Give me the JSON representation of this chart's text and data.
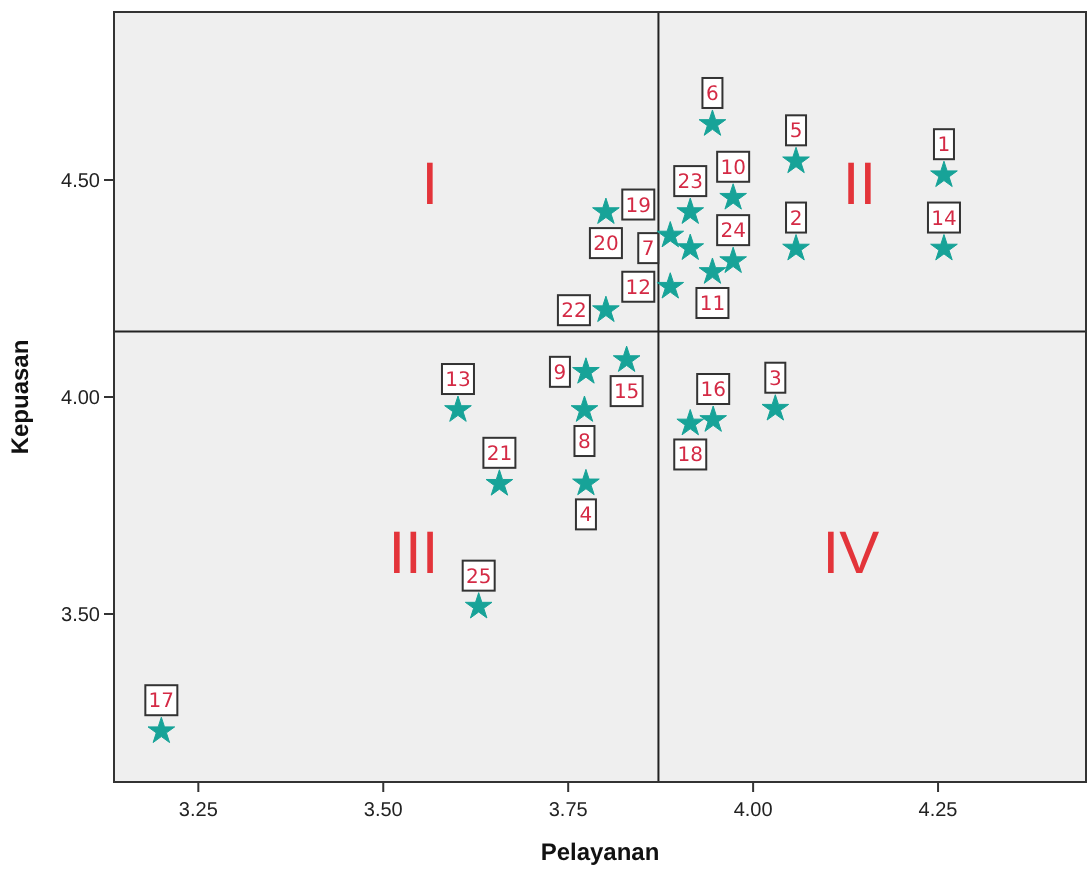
{
  "chart_data": {
    "type": "scatter",
    "xlabel": "Pelayanan",
    "ylabel": "Kepuasan",
    "xlim": [
      3.136,
      4.45
    ],
    "ylim": [
      3.113,
      4.887
    ],
    "xticks": [
      {
        "value": 3.25,
        "label": "3.25"
      },
      {
        "value": 3.5,
        "label": "3.50"
      },
      {
        "value": 3.75,
        "label": "3.75"
      },
      {
        "value": 4,
        "label": "4.00"
      },
      {
        "value": 4.25,
        "label": "4.25"
      }
    ],
    "yticks": [
      {
        "value": 3.5,
        "label": "3.50"
      },
      {
        "value": 4,
        "label": "4.00"
      },
      {
        "value": 4.5,
        "label": "4.50"
      }
    ],
    "marker": "star",
    "grid": false,
    "x": [
      4.258,
      4.058,
      4.03,
      3.774,
      4.058,
      3.945,
      3.915,
      3.772,
      3.774,
      3.973,
      3.945,
      3.888,
      3.601,
      4.258,
      3.829,
      3.946,
      3.2,
      3.915,
      3.888,
      3.801,
      3.657,
      3.801,
      3.915,
      3.973,
      3.629
    ],
    "series": [
      {
        "color": "#17a398",
        "values": [
          4.511,
          4.342,
          3.973,
          3.801,
          4.543,
          4.629,
          4.343,
          3.97,
          4.058,
          4.459,
          4.288,
          4.254,
          3.97,
          4.342,
          4.085,
          3.947,
          3.23,
          3.939,
          4.372,
          4.426,
          3.8,
          4.2,
          4.426,
          4.313,
          3.517
        ]
      }
    ],
    "ref_lines": [
      {
        "axis": "x",
        "value": 3.872,
        "color": "#222222"
      },
      {
        "axis": "y",
        "value": 4.151,
        "color": "#222222"
      }
    ],
    "annotations": [
      "I",
      "II",
      "III",
      "IV",
      {
        "text": "1",
        "x": 4.258,
        "y": 4.511
      },
      {
        "text": "2",
        "x": 4.058,
        "y": 4.342
      },
      {
        "text": "3",
        "x": 4.03,
        "y": 3.973
      },
      {
        "text": "4",
        "x": 3.774,
        "y": 3.801
      },
      {
        "text": "5",
        "x": 4.058,
        "y": 4.543
      },
      {
        "text": "6",
        "x": 3.945,
        "y": 4.629
      },
      {
        "text": "7",
        "x": 3.915,
        "y": 4.343
      },
      {
        "text": "8",
        "x": 3.772,
        "y": 3.97
      },
      {
        "text": "9",
        "x": 3.774,
        "y": 4.058
      },
      {
        "text": "10",
        "x": 3.973,
        "y": 4.459
      },
      {
        "text": "11",
        "x": 3.945,
        "y": 4.288
      },
      {
        "text": "12",
        "x": 3.888,
        "y": 4.254
      },
      {
        "text": "13",
        "x": 3.601,
        "y": 3.97
      },
      {
        "text": "14",
        "x": 4.258,
        "y": 4.342
      },
      {
        "text": "15",
        "x": 3.829,
        "y": 4.085
      },
      {
        "text": "16",
        "x": 3.946,
        "y": 3.947
      },
      {
        "text": "17",
        "x": 3.2,
        "y": 3.23
      },
      {
        "text": "18",
        "x": 3.915,
        "y": 3.939
      },
      {
        "text": "19",
        "x": 3.888,
        "y": 4.372
      },
      {
        "text": "20",
        "x": 3.801,
        "y": 4.426
      },
      {
        "text": "21",
        "x": 3.657,
        "y": 3.8
      },
      {
        "text": "22",
        "x": 3.801,
        "y": 4.2
      },
      {
        "text": "23",
        "x": 3.915,
        "y": 4.426
      },
      {
        "text": "24",
        "x": 3.973,
        "y": 4.313
      },
      {
        "text": "25",
        "x": 3.629,
        "y": 3.517
      }
    ]
  }
}
